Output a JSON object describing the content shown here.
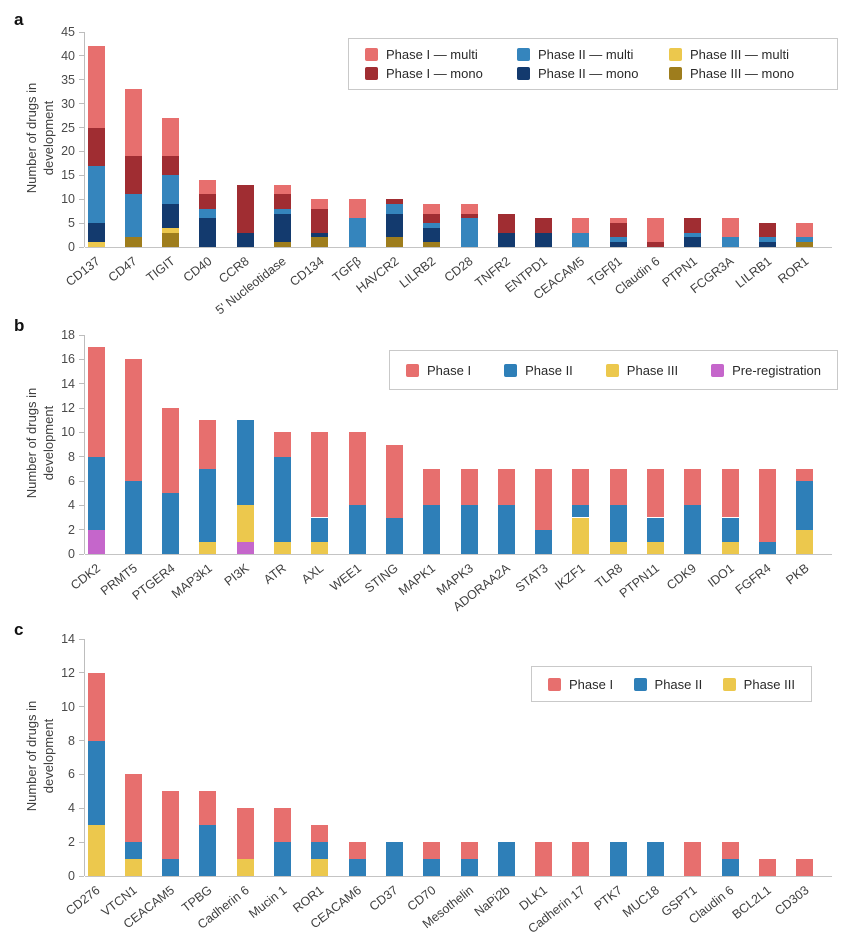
{
  "figure": {
    "background": "#ffffff"
  },
  "chart_data": [
    {
      "panel_label": "a",
      "type": "bar",
      "stacked": true,
      "title": "",
      "xlabel": "",
      "ylabel": "Number of drugs in development",
      "ylim": [
        0,
        45
      ],
      "yticks": [
        0,
        5,
        10,
        15,
        20,
        25,
        30,
        35,
        40,
        45
      ],
      "grid": false,
      "legend_position": "top-right-inside",
      "legend": [
        {
          "label": "Phase I — multi",
          "color": "#e76f6e"
        },
        {
          "label": "Phase II — multi",
          "color": "#3585bd"
        },
        {
          "label": "Phase III — multi",
          "color": "#ecc84d"
        },
        {
          "label": "Phase I — mono",
          "color": "#a02d32"
        },
        {
          "label": "Phase II — mono",
          "color": "#133a6e"
        },
        {
          "label": "Phase III — mono",
          "color": "#9e7d1d"
        }
      ],
      "categories": [
        "CD137",
        "CD47",
        "TIGIT",
        "CD40",
        "CCR8",
        "5' Nucleotidase",
        "CD134",
        "TGFβ",
        "HAVCR2",
        "LILRB2",
        "CD28",
        "TNFR2",
        "ENTPD1",
        "CEACAM5",
        "TGFβ1",
        "Claudin 6",
        "PTPN1",
        "FCGR3A",
        "LILRB1",
        "ROR1"
      ],
      "series": [
        {
          "name": "Phase III — mono",
          "color": "#9e7d1d",
          "values": [
            0,
            2,
            3,
            0,
            0,
            1,
            2,
            0,
            2,
            1,
            0,
            0,
            0,
            0,
            0,
            0,
            0,
            0,
            0,
            1
          ]
        },
        {
          "name": "Phase III — multi",
          "color": "#ecc84d",
          "values": [
            1,
            0,
            1,
            0,
            0,
            0,
            0,
            0,
            0,
            0,
            0,
            0,
            0,
            0,
            0,
            0,
            0,
            0,
            0,
            0
          ]
        },
        {
          "name": "Phase II — mono",
          "color": "#133a6e",
          "values": [
            4,
            0,
            5,
            6,
            3,
            6,
            1,
            0,
            5,
            3,
            0,
            3,
            3,
            0,
            1,
            0,
            2,
            0,
            1,
            0
          ]
        },
        {
          "name": "Phase II — multi",
          "color": "#3585bd",
          "values": [
            12,
            9,
            6,
            2,
            0,
            1,
            0,
            6,
            2,
            1,
            6,
            0,
            0,
            3,
            1,
            0,
            1,
            2,
            1,
            1
          ]
        },
        {
          "name": "Phase I — mono",
          "color": "#a02d32",
          "values": [
            8,
            8,
            4,
            3,
            10,
            3,
            5,
            0,
            1,
            2,
            1,
            4,
            3,
            0,
            3,
            1,
            3,
            0,
            3,
            0
          ]
        },
        {
          "name": "Phase I — multi",
          "color": "#e76f6e",
          "values": [
            17,
            14,
            8,
            3,
            0,
            2,
            2,
            4,
            0,
            2,
            2,
            0,
            0,
            3,
            1,
            5,
            0,
            4,
            0,
            3
          ]
        }
      ]
    },
    {
      "panel_label": "b",
      "type": "bar",
      "stacked": true,
      "title": "",
      "xlabel": "",
      "ylabel": "Number of drugs in development",
      "ylim": [
        0,
        18
      ],
      "yticks": [
        0,
        2,
        4,
        6,
        8,
        10,
        12,
        14,
        16,
        18
      ],
      "grid": false,
      "legend_position": "top-right-inside",
      "legend": [
        {
          "label": "Phase I",
          "color": "#e76f6e"
        },
        {
          "label": "Phase II",
          "color": "#2e7fb8"
        },
        {
          "label": "Phase III",
          "color": "#ecc84d"
        },
        {
          "label": "Pre-registration",
          "color": "#c566cb"
        }
      ],
      "categories": [
        "CDK2",
        "PRMT5",
        "PTGER4",
        "MAP3k1",
        "PI3K",
        "ATR",
        "AXL",
        "WEE1",
        "STING",
        "MAPK1",
        "MAPK3",
        "ADORAA2A",
        "STAT3",
        "IKZF1",
        "TLR8",
        "PTPN11",
        "CDK9",
        "IDO1",
        "FGFR4",
        "PKB"
      ],
      "series": [
        {
          "name": "Pre-registration",
          "color": "#c566cb",
          "values": [
            2,
            0,
            0,
            0,
            1,
            0,
            0,
            0,
            0,
            0,
            0,
            0,
            0,
            0,
            0,
            0,
            0,
            0,
            0,
            0
          ]
        },
        {
          "name": "Phase III",
          "color": "#ecc84d",
          "values": [
            0,
            0,
            0,
            1,
            3,
            1,
            1,
            0,
            0,
            0,
            0,
            0,
            0,
            3,
            1,
            1,
            0,
            1,
            0,
            2
          ]
        },
        {
          "name": "Phase II",
          "color": "#2e7fb8",
          "values": [
            6,
            6,
            5,
            6,
            7,
            7,
            2,
            4,
            3,
            4,
            4,
            4,
            2,
            1,
            3,
            2,
            4,
            2,
            1,
            4
          ]
        },
        {
          "name": "Phase I",
          "color": "#e76f6e",
          "values": [
            9,
            10,
            7,
            4,
            0,
            2,
            7,
            6,
            6,
            3,
            3,
            3,
            5,
            3,
            3,
            4,
            3,
            4,
            6,
            1
          ]
        }
      ]
    },
    {
      "panel_label": "c",
      "type": "bar",
      "stacked": true,
      "title": "",
      "xlabel": "",
      "ylabel": "Number of drugs in development",
      "ylim": [
        0,
        14
      ],
      "yticks": [
        0,
        2,
        4,
        6,
        8,
        10,
        12,
        14
      ],
      "grid": false,
      "legend_position": "top-right-inside",
      "legend": [
        {
          "label": "Phase I",
          "color": "#e76f6e"
        },
        {
          "label": "Phase II",
          "color": "#2e7fb8"
        },
        {
          "label": "Phase III",
          "color": "#ecc84d"
        }
      ],
      "categories": [
        "CD276",
        "VTCN1",
        "CEACAM5",
        "TPBG",
        "Cadherin 6",
        "Mucin 1",
        "ROR1",
        "CEACAM6",
        "CD37",
        "CD70",
        "Mesothelin",
        "NaPi2b",
        "DLK1",
        "Cadherin 17",
        "PTK7",
        "MUC18",
        "GSPT1",
        "Claudin 6",
        "BCL2L1",
        "CD303"
      ],
      "series": [
        {
          "name": "Phase III",
          "color": "#ecc84d",
          "values": [
            3,
            1,
            0,
            0,
            1,
            0,
            1,
            0,
            0,
            0,
            0,
            0,
            0,
            0,
            0,
            0,
            0,
            0,
            0,
            0
          ]
        },
        {
          "name": "Phase II",
          "color": "#2e7fb8",
          "values": [
            5,
            1,
            1,
            3,
            0,
            2,
            1,
            1,
            2,
            1,
            1,
            2,
            0,
            0,
            2,
            2,
            0,
            1,
            0,
            0
          ]
        },
        {
          "name": "Phase I",
          "color": "#e76f6e",
          "values": [
            4,
            4,
            4,
            2,
            3,
            2,
            1,
            1,
            0,
            1,
            1,
            0,
            2,
            2,
            0,
            0,
            2,
            1,
            1,
            1
          ]
        }
      ]
    }
  ]
}
